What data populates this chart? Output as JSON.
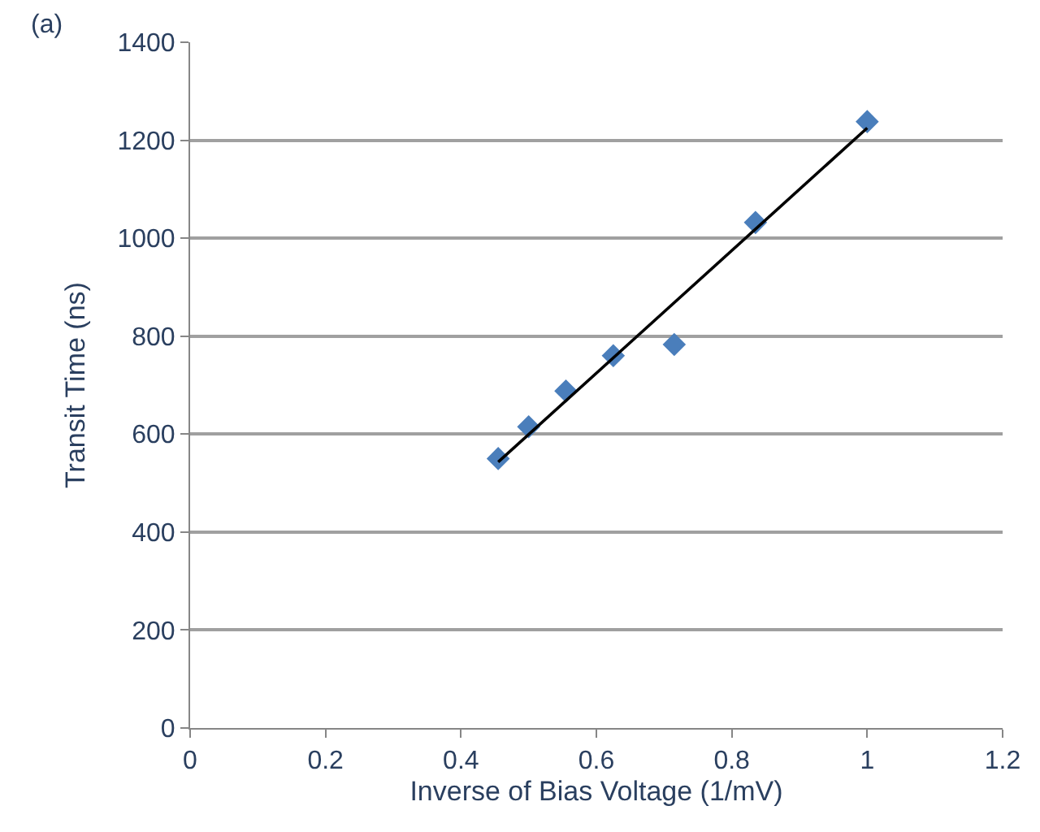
{
  "chart_data": {
    "type": "scatter",
    "xlabel": "Inverse of Bias Voltage (1/mV)",
    "ylabel": "Transit Time (ns)",
    "annotations": [
      "(a)"
    ],
    "series": [
      {
        "color": "#4a7ebb",
        "x": [
          0.455,
          0.5,
          0.555,
          0.625,
          0.715,
          0.835,
          1.0
        ],
        "values": [
          550,
          615,
          688,
          760,
          783,
          1032,
          1238
        ],
        "marker": "diamond"
      },
      {
        "type": "line",
        "color": "#000000",
        "x": [
          0.455,
          1.0
        ],
        "values": [
          543,
          1225
        ],
        "marker": "none",
        "line_style": "solid"
      }
    ],
    "xlim": [
      0,
      1.2
    ],
    "xticks": [
      0,
      0.2,
      0.4,
      0.6,
      0.8,
      1,
      1.2
    ],
    "ylim": [
      0,
      1400
    ],
    "yticks": [
      0,
      200,
      400,
      600,
      800,
      1000,
      1200,
      1400
    ],
    "grid": "y"
  }
}
